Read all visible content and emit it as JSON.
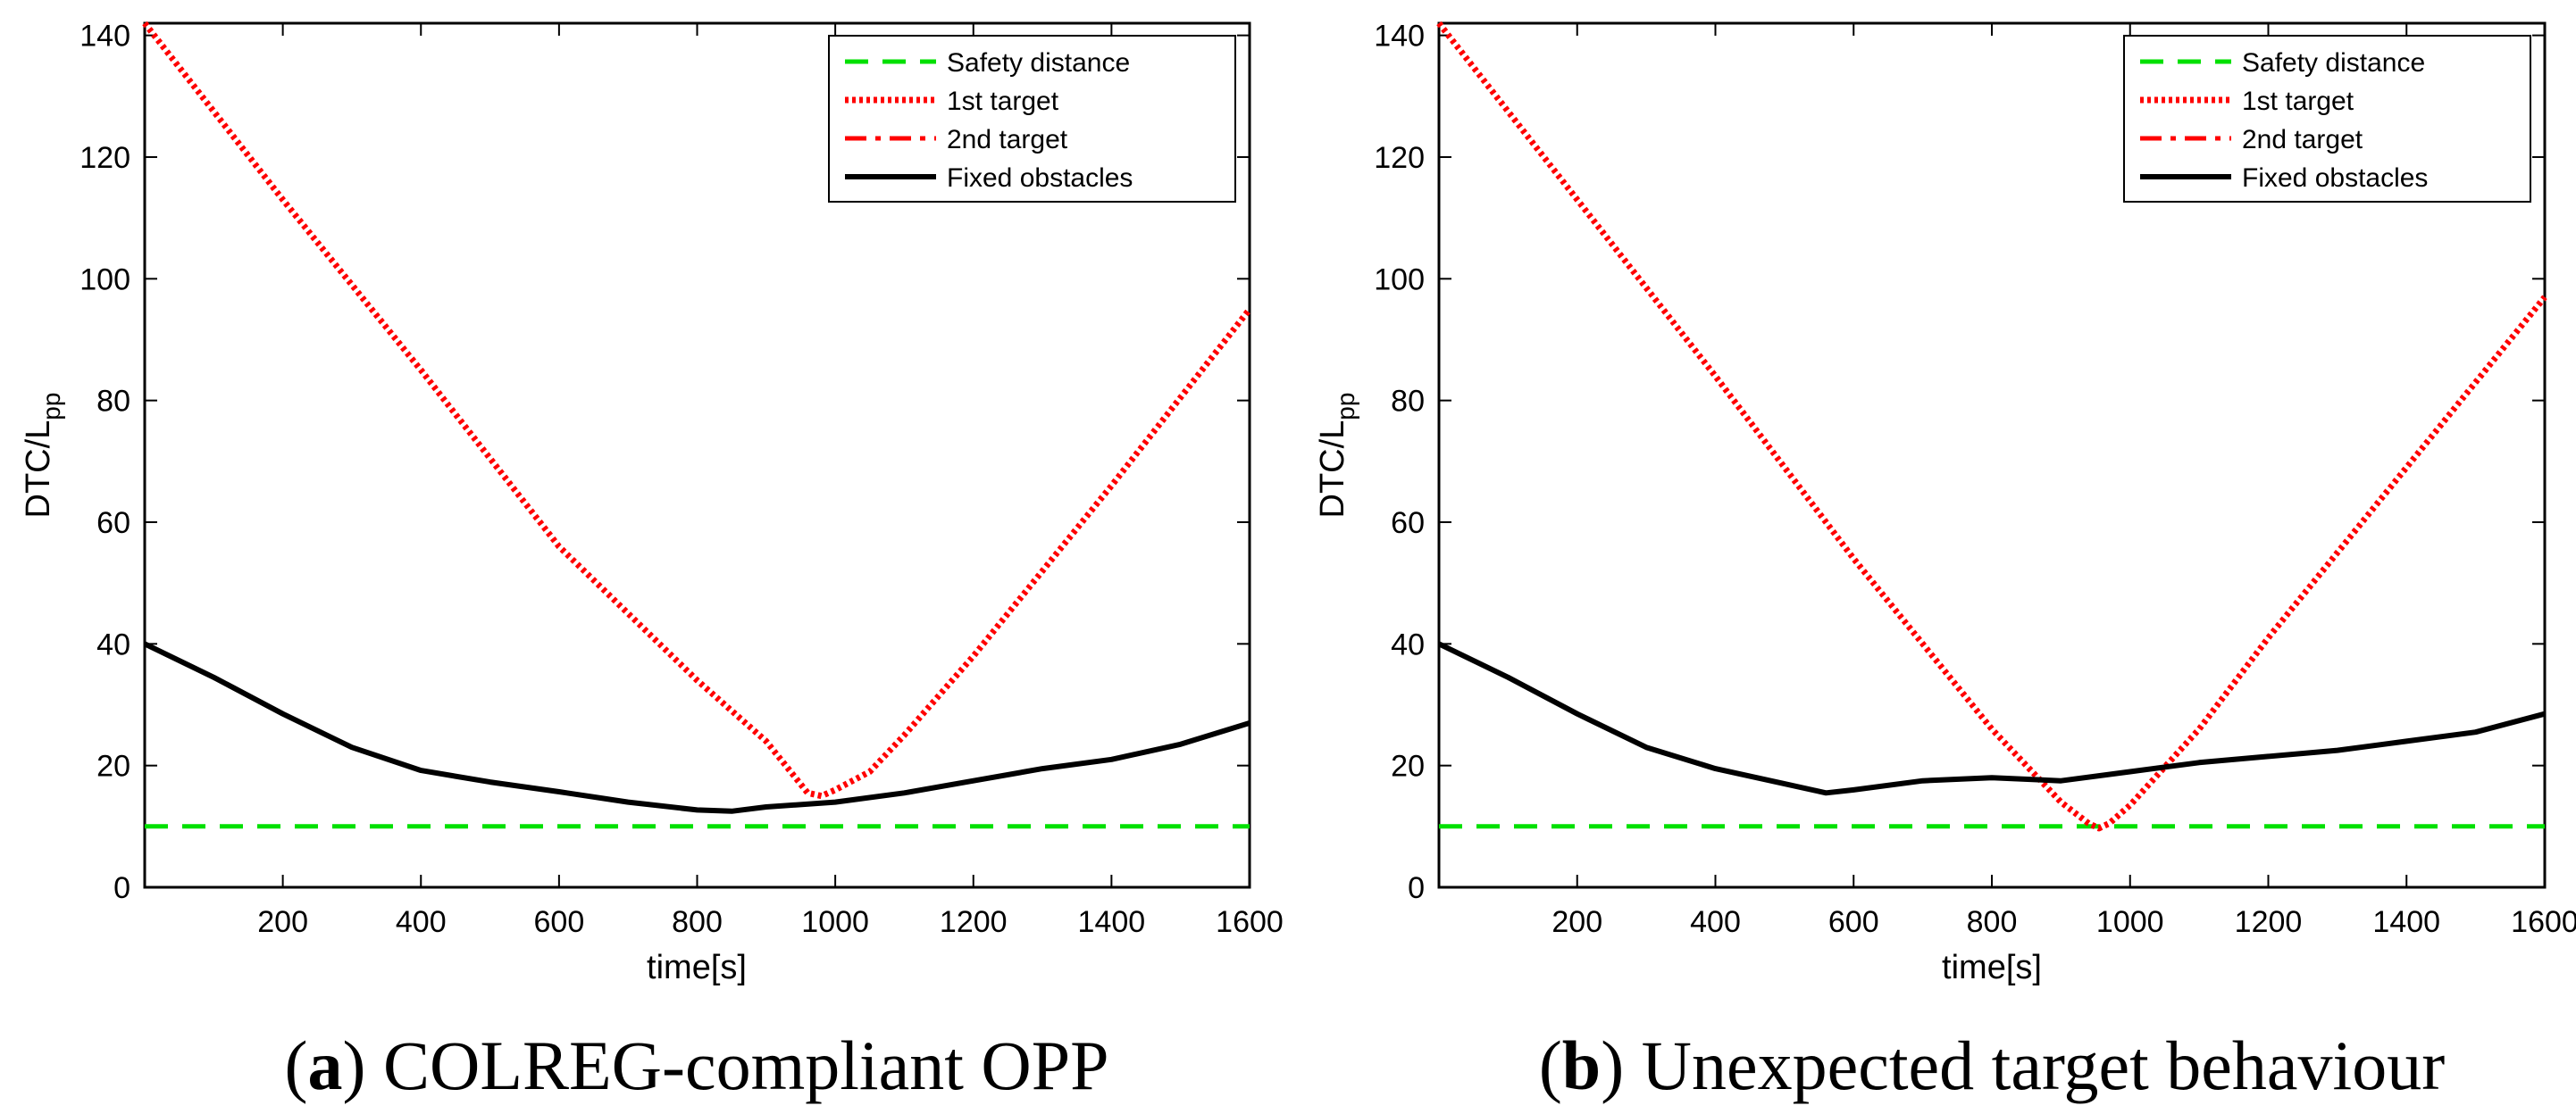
{
  "chart_data": [
    {
      "type": "line",
      "caption_letter": "a",
      "caption_text": "COLREG-compliant OPP",
      "xlabel": "time[s]",
      "ylabel": "DTC/L",
      "ylabel_sub": "pp",
      "xlim": [
        0,
        1600
      ],
      "ylim": [
        0,
        142
      ],
      "xticks": [
        200,
        400,
        600,
        800,
        1000,
        1200,
        1400,
        1600
      ],
      "yticks": [
        0,
        20,
        40,
        60,
        80,
        100,
        120,
        140
      ],
      "grid": false,
      "legend_position": "top-right",
      "series": [
        {
          "name": "Safety distance",
          "style": "dashed",
          "color": "#00e000",
          "x": [
            0,
            1600
          ],
          "y": [
            10,
            10
          ]
        },
        {
          "name": "1st target",
          "style": "dotted",
          "color": "#ff0000",
          "x": [
            0,
            200,
            400,
            600,
            800,
            900,
            960,
            980,
            1000,
            1050,
            1100,
            1200,
            1400,
            1600
          ],
          "y": [
            142,
            113,
            85,
            56,
            34,
            24,
            15.5,
            15,
            16,
            19,
            25,
            38,
            66,
            95
          ]
        },
        {
          "name": "2nd target",
          "style": "dashdot",
          "color": "#ff0000",
          "x": [],
          "y": []
        },
        {
          "name": "Fixed obstacles",
          "style": "solid",
          "color": "#000000",
          "x": [
            0,
            100,
            200,
            300,
            400,
            500,
            600,
            700,
            800,
            850,
            900,
            1000,
            1100,
            1200,
            1300,
            1400,
            1500,
            1600
          ],
          "y": [
            40,
            34.5,
            28.5,
            23,
            19.2,
            17.3,
            15.7,
            14,
            12.7,
            12.5,
            13.2,
            14,
            15.5,
            17.5,
            19.5,
            21,
            23.5,
            27
          ]
        }
      ]
    },
    {
      "type": "line",
      "caption_letter": "b",
      "caption_text": "Unexpected target behaviour",
      "xlabel": "time[s]",
      "ylabel": "DTC/L",
      "ylabel_sub": "pp",
      "xlim": [
        0,
        1600
      ],
      "ylim": [
        0,
        142
      ],
      "xticks": [
        200,
        400,
        600,
        800,
        1000,
        1200,
        1400,
        1600
      ],
      "yticks": [
        0,
        20,
        40,
        60,
        80,
        100,
        120,
        140
      ],
      "grid": false,
      "legend_position": "top-right",
      "series": [
        {
          "name": "Safety distance",
          "style": "dashed",
          "color": "#00e000",
          "x": [
            0,
            1600
          ],
          "y": [
            10,
            10
          ]
        },
        {
          "name": "1st target",
          "style": "dotted",
          "color": "#ff0000",
          "x": [
            0,
            200,
            400,
            600,
            800,
            900,
            940,
            955,
            970,
            1000,
            1100,
            1200,
            1400,
            1600
          ],
          "y": [
            142,
            113,
            84,
            54,
            26,
            14,
            10.5,
            9.7,
            10.5,
            13.5,
            26,
            41,
            69,
            97
          ]
        },
        {
          "name": "2nd target",
          "style": "dashdot",
          "color": "#ff0000",
          "x": [],
          "y": []
        },
        {
          "name": "Fixed obstacles",
          "style": "solid",
          "color": "#000000",
          "x": [
            0,
            100,
            200,
            300,
            400,
            500,
            560,
            600,
            700,
            800,
            900,
            1000,
            1100,
            1200,
            1300,
            1400,
            1500,
            1600
          ],
          "y": [
            40,
            34.5,
            28.5,
            23,
            19.5,
            17,
            15.5,
            16,
            17.5,
            18,
            17.5,
            19,
            20.5,
            21.5,
            22.5,
            24,
            25.5,
            28.5
          ]
        }
      ]
    }
  ]
}
